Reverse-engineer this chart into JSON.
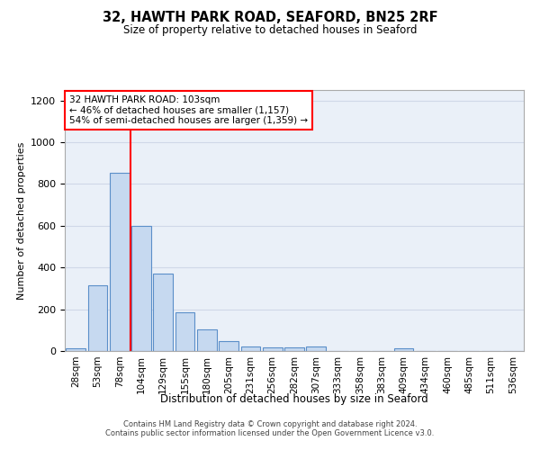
{
  "title": "32, HAWTH PARK ROAD, SEAFORD, BN25 2RF",
  "subtitle": "Size of property relative to detached houses in Seaford",
  "xlabel": "Distribution of detached houses by size in Seaford",
  "ylabel": "Number of detached properties",
  "bar_labels": [
    "28sqm",
    "53sqm",
    "78sqm",
    "104sqm",
    "129sqm",
    "155sqm",
    "180sqm",
    "205sqm",
    "231sqm",
    "256sqm",
    "282sqm",
    "307sqm",
    "333sqm",
    "358sqm",
    "383sqm",
    "409sqm",
    "434sqm",
    "460sqm",
    "485sqm",
    "511sqm",
    "536sqm"
  ],
  "bar_values": [
    15,
    315,
    855,
    600,
    370,
    185,
    105,
    47,
    20,
    18,
    18,
    20,
    0,
    0,
    0,
    12,
    0,
    0,
    0,
    0,
    0
  ],
  "bar_color": "#c6d9f0",
  "bar_edge_color": "#5b8fc9",
  "ylim": [
    0,
    1250
  ],
  "yticks": [
    0,
    200,
    400,
    600,
    800,
    1000,
    1200
  ],
  "red_line_index": 3,
  "annotation_text": "32 HAWTH PARK ROAD: 103sqm\n← 46% of detached houses are smaller (1,157)\n54% of semi-detached houses are larger (1,359) →",
  "annotation_box_color": "white",
  "annotation_box_edge_color": "red",
  "grid_color": "#d0d8e8",
  "background_color": "#eaf0f8",
  "footer_line1": "Contains HM Land Registry data © Crown copyright and database right 2024.",
  "footer_line2": "Contains public sector information licensed under the Open Government Licence v3.0."
}
